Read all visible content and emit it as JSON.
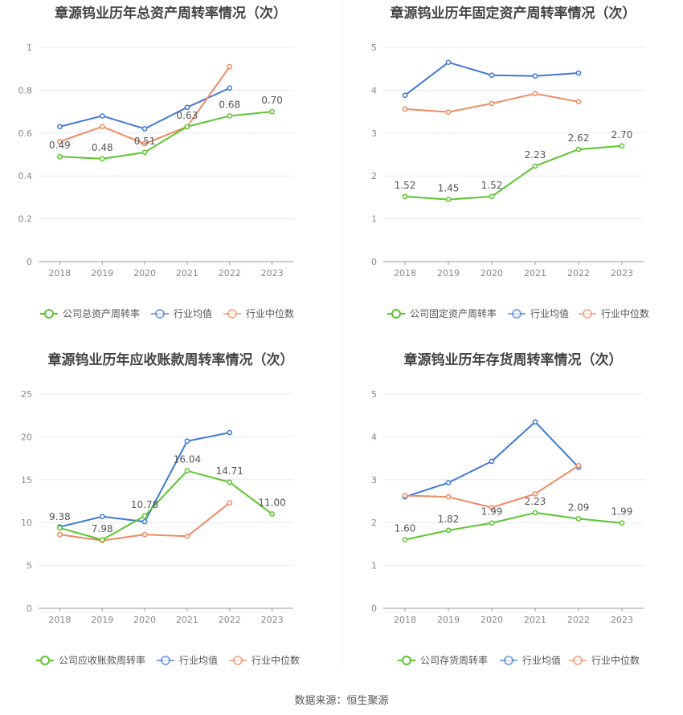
{
  "source_label": "数据来源：恒生聚源",
  "colors": {
    "company": "#5cc42e",
    "avg": "#3f78d8",
    "median": "#ef8a62"
  },
  "chart_data": [
    {
      "type": "line",
      "title": "章源钨业历年总资产周转率情况（次）",
      "categories": [
        "2018",
        "2019",
        "2020",
        "2021",
        "2022",
        "2023"
      ],
      "ylim": [
        0,
        1
      ],
      "yticks": [
        "0",
        "0.2",
        "0.4",
        "0.6",
        "0.8",
        "1"
      ],
      "ytick_values": [
        0,
        0.2,
        0.4,
        0.6,
        0.8,
        1
      ],
      "series": [
        {
          "name": "公司总资产周转率",
          "values": [
            0.49,
            0.48,
            0.51,
            0.63,
            0.68,
            0.7
          ],
          "labels": [
            "0.49",
            "0.48",
            "0.51",
            "0.63",
            "0.68",
            "0.70"
          ]
        },
        {
          "name": "行业均值",
          "values": [
            0.63,
            0.68,
            0.62,
            0.72,
            0.81,
            null
          ]
        },
        {
          "name": "行业中位数",
          "values": [
            0.56,
            0.63,
            0.55,
            0.63,
            0.91,
            null
          ]
        }
      ]
    },
    {
      "type": "line",
      "title": "章源钨业历年固定资产周转率情况（次）",
      "categories": [
        "2018",
        "2019",
        "2020",
        "2021",
        "2022",
        "2023"
      ],
      "ylim": [
        0,
        5
      ],
      "yticks": [
        "0",
        "1",
        "2",
        "3",
        "4",
        "5"
      ],
      "ytick_values": [
        0,
        1,
        2,
        3,
        4,
        5
      ],
      "series": [
        {
          "name": "公司固定资产周转率",
          "values": [
            1.52,
            1.45,
            1.52,
            2.23,
            2.62,
            2.7
          ],
          "labels": [
            "1.52",
            "1.45",
            "1.52",
            "2.23",
            "2.62",
            "2.70"
          ]
        },
        {
          "name": "行业均值",
          "values": [
            3.88,
            4.65,
            4.35,
            4.33,
            4.4,
            null
          ]
        },
        {
          "name": "行业中位数",
          "values": [
            3.56,
            3.49,
            3.69,
            3.92,
            3.73,
            null
          ]
        }
      ]
    },
    {
      "type": "line",
      "title": "章源钨业历年应收账款周转率情况（次）",
      "categories": [
        "2018",
        "2019",
        "2020",
        "2021",
        "2022",
        "2023"
      ],
      "ylim": [
        0,
        25
      ],
      "yticks": [
        "0",
        "5",
        "10",
        "15",
        "20",
        "25"
      ],
      "ytick_values": [
        0,
        5,
        10,
        15,
        20,
        25
      ],
      "series": [
        {
          "name": "公司应收账款周转率",
          "values": [
            9.38,
            7.98,
            10.78,
            16.04,
            14.71,
            11.0
          ],
          "labels": [
            "9.38",
            "7.98",
            "10.78",
            "16.04",
            "14.71",
            "11.00"
          ]
        },
        {
          "name": "行业均值",
          "values": [
            9.5,
            10.7,
            10.1,
            19.5,
            20.5,
            null
          ]
        },
        {
          "name": "行业中位数",
          "values": [
            8.6,
            7.9,
            8.6,
            8.4,
            12.3,
            null
          ]
        }
      ]
    },
    {
      "type": "line",
      "title": "章源钨业历年存货周转率情况（次）",
      "categories": [
        "2018",
        "2019",
        "2020",
        "2021",
        "2022",
        "2023"
      ],
      "ylim": [
        0,
        5
      ],
      "yticks": [
        "0",
        "1",
        "2",
        "3",
        "4",
        "5"
      ],
      "ytick_values": [
        0,
        1,
        2,
        3,
        4,
        5
      ],
      "series": [
        {
          "name": "公司存货周转率",
          "values": [
            1.6,
            1.82,
            1.99,
            2.23,
            2.09,
            1.99
          ],
          "labels": [
            "1.60",
            "1.82",
            "1.99",
            "2.23",
            "2.09",
            "1.99"
          ]
        },
        {
          "name": "行业均值",
          "values": [
            2.6,
            2.93,
            3.43,
            4.35,
            3.29,
            null
          ]
        },
        {
          "name": "行业中位数",
          "values": [
            2.63,
            2.6,
            2.35,
            2.67,
            3.33,
            null
          ]
        }
      ]
    }
  ]
}
